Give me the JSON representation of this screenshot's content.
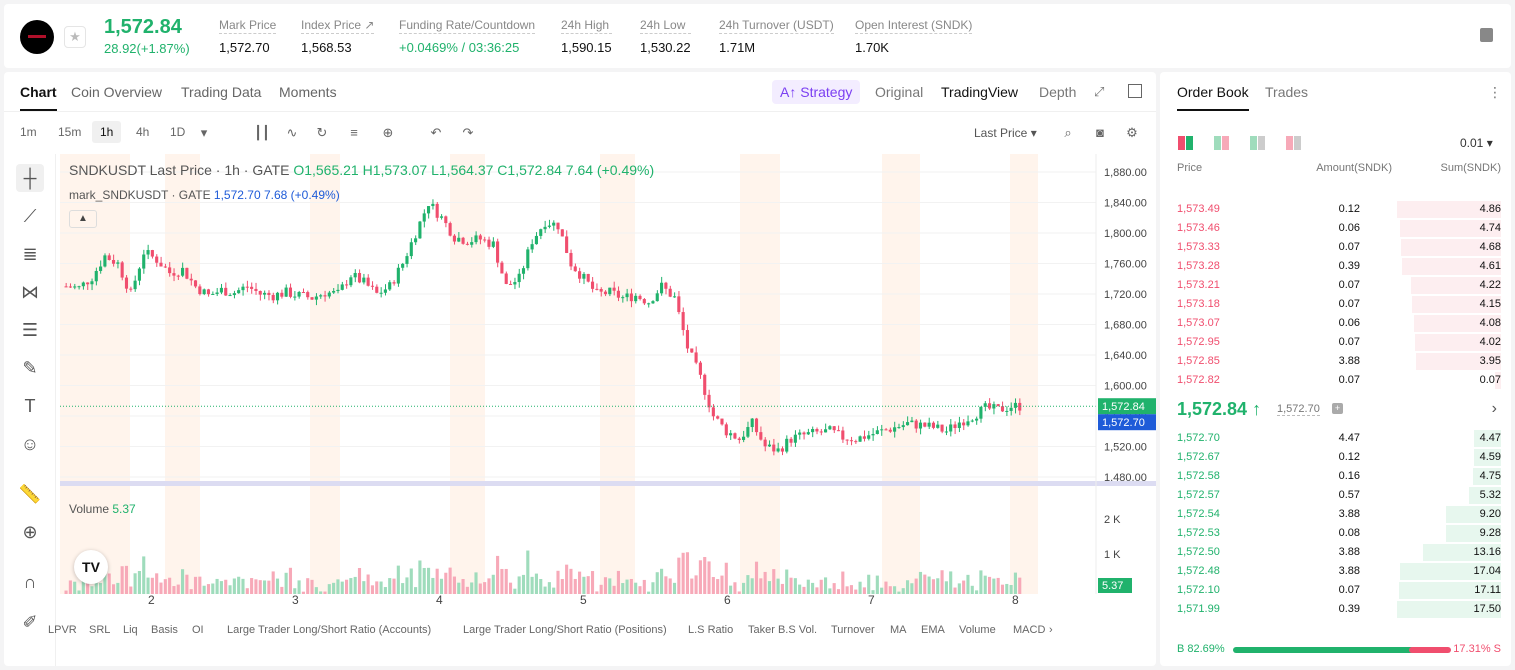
{
  "ticker": {
    "price": "1,572.84",
    "change": "28.92(+1.87%)"
  },
  "stats": [
    {
      "label": "Mark Price",
      "value": "1,572.70"
    },
    {
      "label": "Index Price ↗",
      "value": "1,568.53"
    },
    {
      "label": "Funding Rate/Countdown",
      "value": "+0.0469% / 03:36:25"
    },
    {
      "label": "24h High",
      "value": "1,590.15"
    },
    {
      "label": "24h Low",
      "value": "1,530.22"
    },
    {
      "label": "24h Turnover (USDT)",
      "value": "1.71M"
    },
    {
      "label": "Open Interest (SNDK)",
      "value": "1.70K"
    }
  ],
  "tabs": [
    "Chart",
    "Coin Overview",
    "Trading Data",
    "Moments"
  ],
  "strategy": "Strategy",
  "views": [
    "Original",
    "TradingView",
    "Depth"
  ],
  "intervals": [
    "1m",
    "15m",
    "1h",
    "4h",
    "1D"
  ],
  "last_price_label": "Last Price",
  "legend": {
    "title": "SNDKUSDT Last Price · 1h · GATE",
    "o": "O1,565.21",
    "h": "H1,573.07",
    "l": "L1,564.37",
    "c": "C1,572.84",
    "chg": "7.64 (+0.49%)",
    "mark": "mark_SNDKUSDT · GATE",
    "mark_val": "1,572.70",
    "mark_chg": "7.68 (+0.49%)"
  },
  "volume": {
    "label": "Volume",
    "value": "5.37"
  },
  "indicators": [
    "LPVR",
    "SRL",
    "Liq",
    "Basis",
    "OI",
    "Large Trader Long/Short Ratio (Accounts)",
    "Large Trader Long/Short Ratio (Positions)",
    "L.S Ratio",
    "Taker B.S Vol.",
    "Turnover",
    "MA",
    "EMA",
    "Volume",
    "MACD"
  ],
  "chart_data": {
    "type": "candlestick",
    "price_axis": [
      "1,880.00",
      "1,840.00",
      "1,800.00",
      "1,760.00",
      "1,720.00",
      "1,680.00",
      "1,640.00",
      "1,600.00",
      "1,560.00",
      "1,520.00",
      "1,480.00"
    ],
    "ylim": [
      1480,
      1880
    ],
    "x_ticks": [
      "2",
      "3",
      "4",
      "5",
      "6",
      "7",
      "8"
    ],
    "volume_axis": [
      "2 K",
      "1 K"
    ],
    "last_price": "1,572.84",
    "mark_price": "1,572.70",
    "volume_last": "5.37",
    "close_path": [
      1730,
      1728,
      1742,
      1770,
      1760,
      1720,
      1775,
      1765,
      1748,
      1752,
      1730,
      1718,
      1725,
      1722,
      1730,
      1720,
      1718,
      1722,
      1718,
      1715,
      1722,
      1720,
      1745,
      1735,
      1720,
      1730,
      1760,
      1800,
      1840,
      1820,
      1795,
      1790,
      1792,
      1785,
      1730,
      1740,
      1790,
      1815,
      1810,
      1760,
      1740,
      1720,
      1722,
      1715,
      1718,
      1710,
      1730,
      1715,
      1650,
      1610,
      1560,
      1540,
      1530,
      1550,
      1520,
      1515,
      1530,
      1535,
      1538,
      1540,
      1532,
      1530,
      1535,
      1540,
      1545,
      1550,
      1548,
      1545,
      1540,
      1552,
      1560,
      1570,
      1568,
      1572.84
    ]
  },
  "orderbook": {
    "tabs": [
      "Order Book",
      "Trades"
    ],
    "tick": "0.01 ▾",
    "headers": [
      "Price",
      "Amount(SNDK)",
      "Sum(SNDK)"
    ],
    "asks": [
      [
        "1,573.49",
        "0.12",
        "4.86"
      ],
      [
        "1,573.46",
        "0.06",
        "4.74"
      ],
      [
        "1,573.33",
        "0.07",
        "4.68"
      ],
      [
        "1,573.28",
        "0.39",
        "4.61"
      ],
      [
        "1,573.21",
        "0.07",
        "4.22"
      ],
      [
        "1,573.18",
        "0.07",
        "4.15"
      ],
      [
        "1,573.07",
        "0.06",
        "4.08"
      ],
      [
        "1,572.95",
        "0.07",
        "4.02"
      ],
      [
        "1,572.85",
        "3.88",
        "3.95"
      ],
      [
        "1,572.82",
        "0.07",
        "0.07"
      ]
    ],
    "last": "1,572.84 ↑",
    "last_ref": "1,572.70",
    "bids": [
      [
        "1,572.70",
        "4.47",
        "4.47"
      ],
      [
        "1,572.67",
        "0.12",
        "4.59"
      ],
      [
        "1,572.58",
        "0.16",
        "4.75"
      ],
      [
        "1,572.57",
        "0.57",
        "5.32"
      ],
      [
        "1,572.54",
        "3.88",
        "9.20"
      ],
      [
        "1,572.53",
        "0.08",
        "9.28"
      ],
      [
        "1,572.50",
        "3.88",
        "13.16"
      ],
      [
        "1,572.48",
        "3.88",
        "17.04"
      ],
      [
        "1,572.10",
        "0.07",
        "17.11"
      ],
      [
        "1,571.99",
        "0.39",
        "17.50"
      ]
    ],
    "buy": "B 82.69%",
    "sell": "17.31% S"
  },
  "colors": {
    "up": "#20b26c",
    "down": "#f04e6e",
    "accent": "#7b3ff2"
  }
}
